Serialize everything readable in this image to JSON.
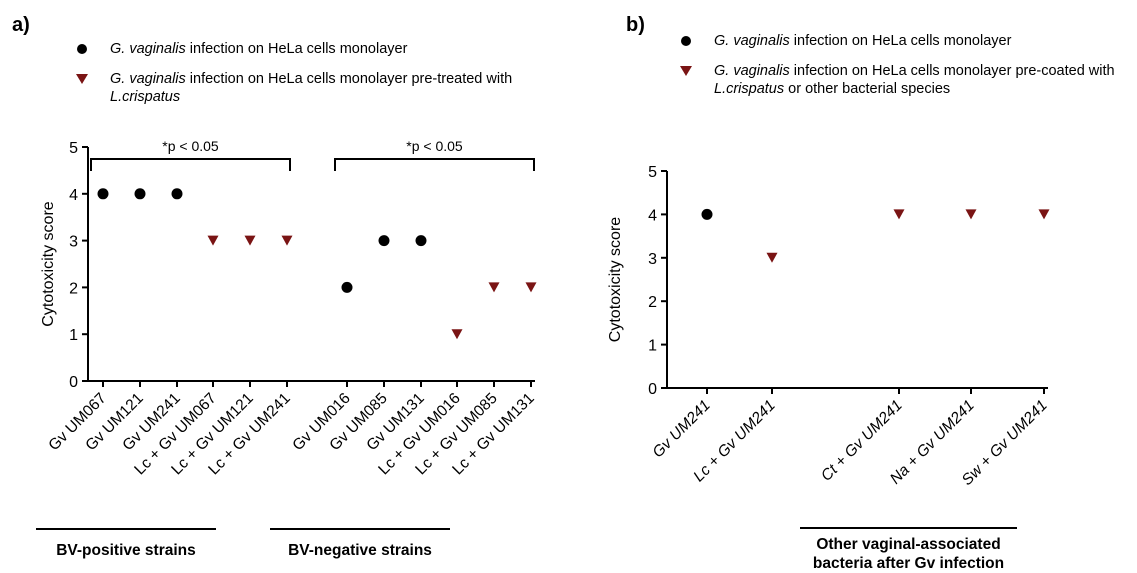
{
  "panel_a": {
    "letter": "a)",
    "legend": [
      {
        "marker": "circle",
        "italic": "G. vaginalis",
        "text": " infection on HeLa cells monolayer",
        "line2_italic": "",
        "line2": ""
      },
      {
        "marker": "triangle",
        "italic": "G. vaginalis",
        "text": " infection on HeLa cells monolayer pre-treated with",
        "line2_italic": "L.crispatus",
        "line2": ""
      }
    ],
    "group_labels": [
      "BV-positive strains",
      "BV-negative strains"
    ],
    "annotations": [
      "*p < 0.05",
      "*p < 0.05"
    ]
  },
  "panel_b": {
    "letter": "b)",
    "legend": [
      {
        "marker": "circle",
        "italic": "G. vaginalis",
        "text": " infection on HeLa cells monolayer",
        "line2_italic": "",
        "line2": ""
      },
      {
        "marker": "triangle",
        "italic": "G. vaginalis",
        "text": " infection on HeLa cells monolayer pre-coated with",
        "line2_italic": "L.crispatus",
        "line2": " or other bacterial species"
      }
    ],
    "group_label_line1": "Other vaginal-associated",
    "group_label_line2": "bacteria after Gv infection"
  },
  "colors": {
    "circle": "#000000",
    "triangle": "#7a1414"
  },
  "chart_data": [
    {
      "type": "scatter",
      "ylabel": "Cytotoxicity score",
      "ylim": [
        0,
        5
      ],
      "yticks": [
        0,
        1,
        2,
        3,
        4,
        5
      ],
      "categories": [
        "Gv UM067",
        "Gv UM121",
        "Gv UM241",
        "Lc + Gv UM067",
        "Lc + Gv UM121",
        "Lc + Gv UM241",
        "Gv UM016",
        "Gv UM085",
        "Gv UM131",
        "Lc + Gv UM016",
        "Lc + Gv UM085",
        "Lc + Gv UM131"
      ],
      "values": [
        4,
        4,
        4,
        3,
        3,
        3,
        2,
        3,
        3,
        1,
        2,
        2
      ],
      "markers": [
        "circle",
        "circle",
        "circle",
        "triangle",
        "triangle",
        "triangle",
        "circle",
        "circle",
        "circle",
        "triangle",
        "triangle",
        "triangle"
      ],
      "significance_brackets": [
        {
          "from": "Gv UM067",
          "to": "Lc + Gv UM241",
          "label": "*p < 0.05"
        },
        {
          "from": "Gv UM016",
          "to": "Lc + Gv UM131",
          "label": "*p < 0.05"
        }
      ]
    },
    {
      "type": "scatter",
      "ylabel": "Cytotoxicity score",
      "ylim": [
        0,
        5
      ],
      "yticks": [
        0,
        1,
        2,
        3,
        4,
        5
      ],
      "categories": [
        "Gv UM241",
        "Lc + Gv UM241",
        "Ct + Gv UM241",
        "Na + Gv UM241",
        "Sw + Gv UM241"
      ],
      "values": [
        4,
        3,
        4,
        4,
        4
      ],
      "markers": [
        "circle",
        "triangle",
        "triangle",
        "triangle",
        "triangle"
      ]
    }
  ]
}
